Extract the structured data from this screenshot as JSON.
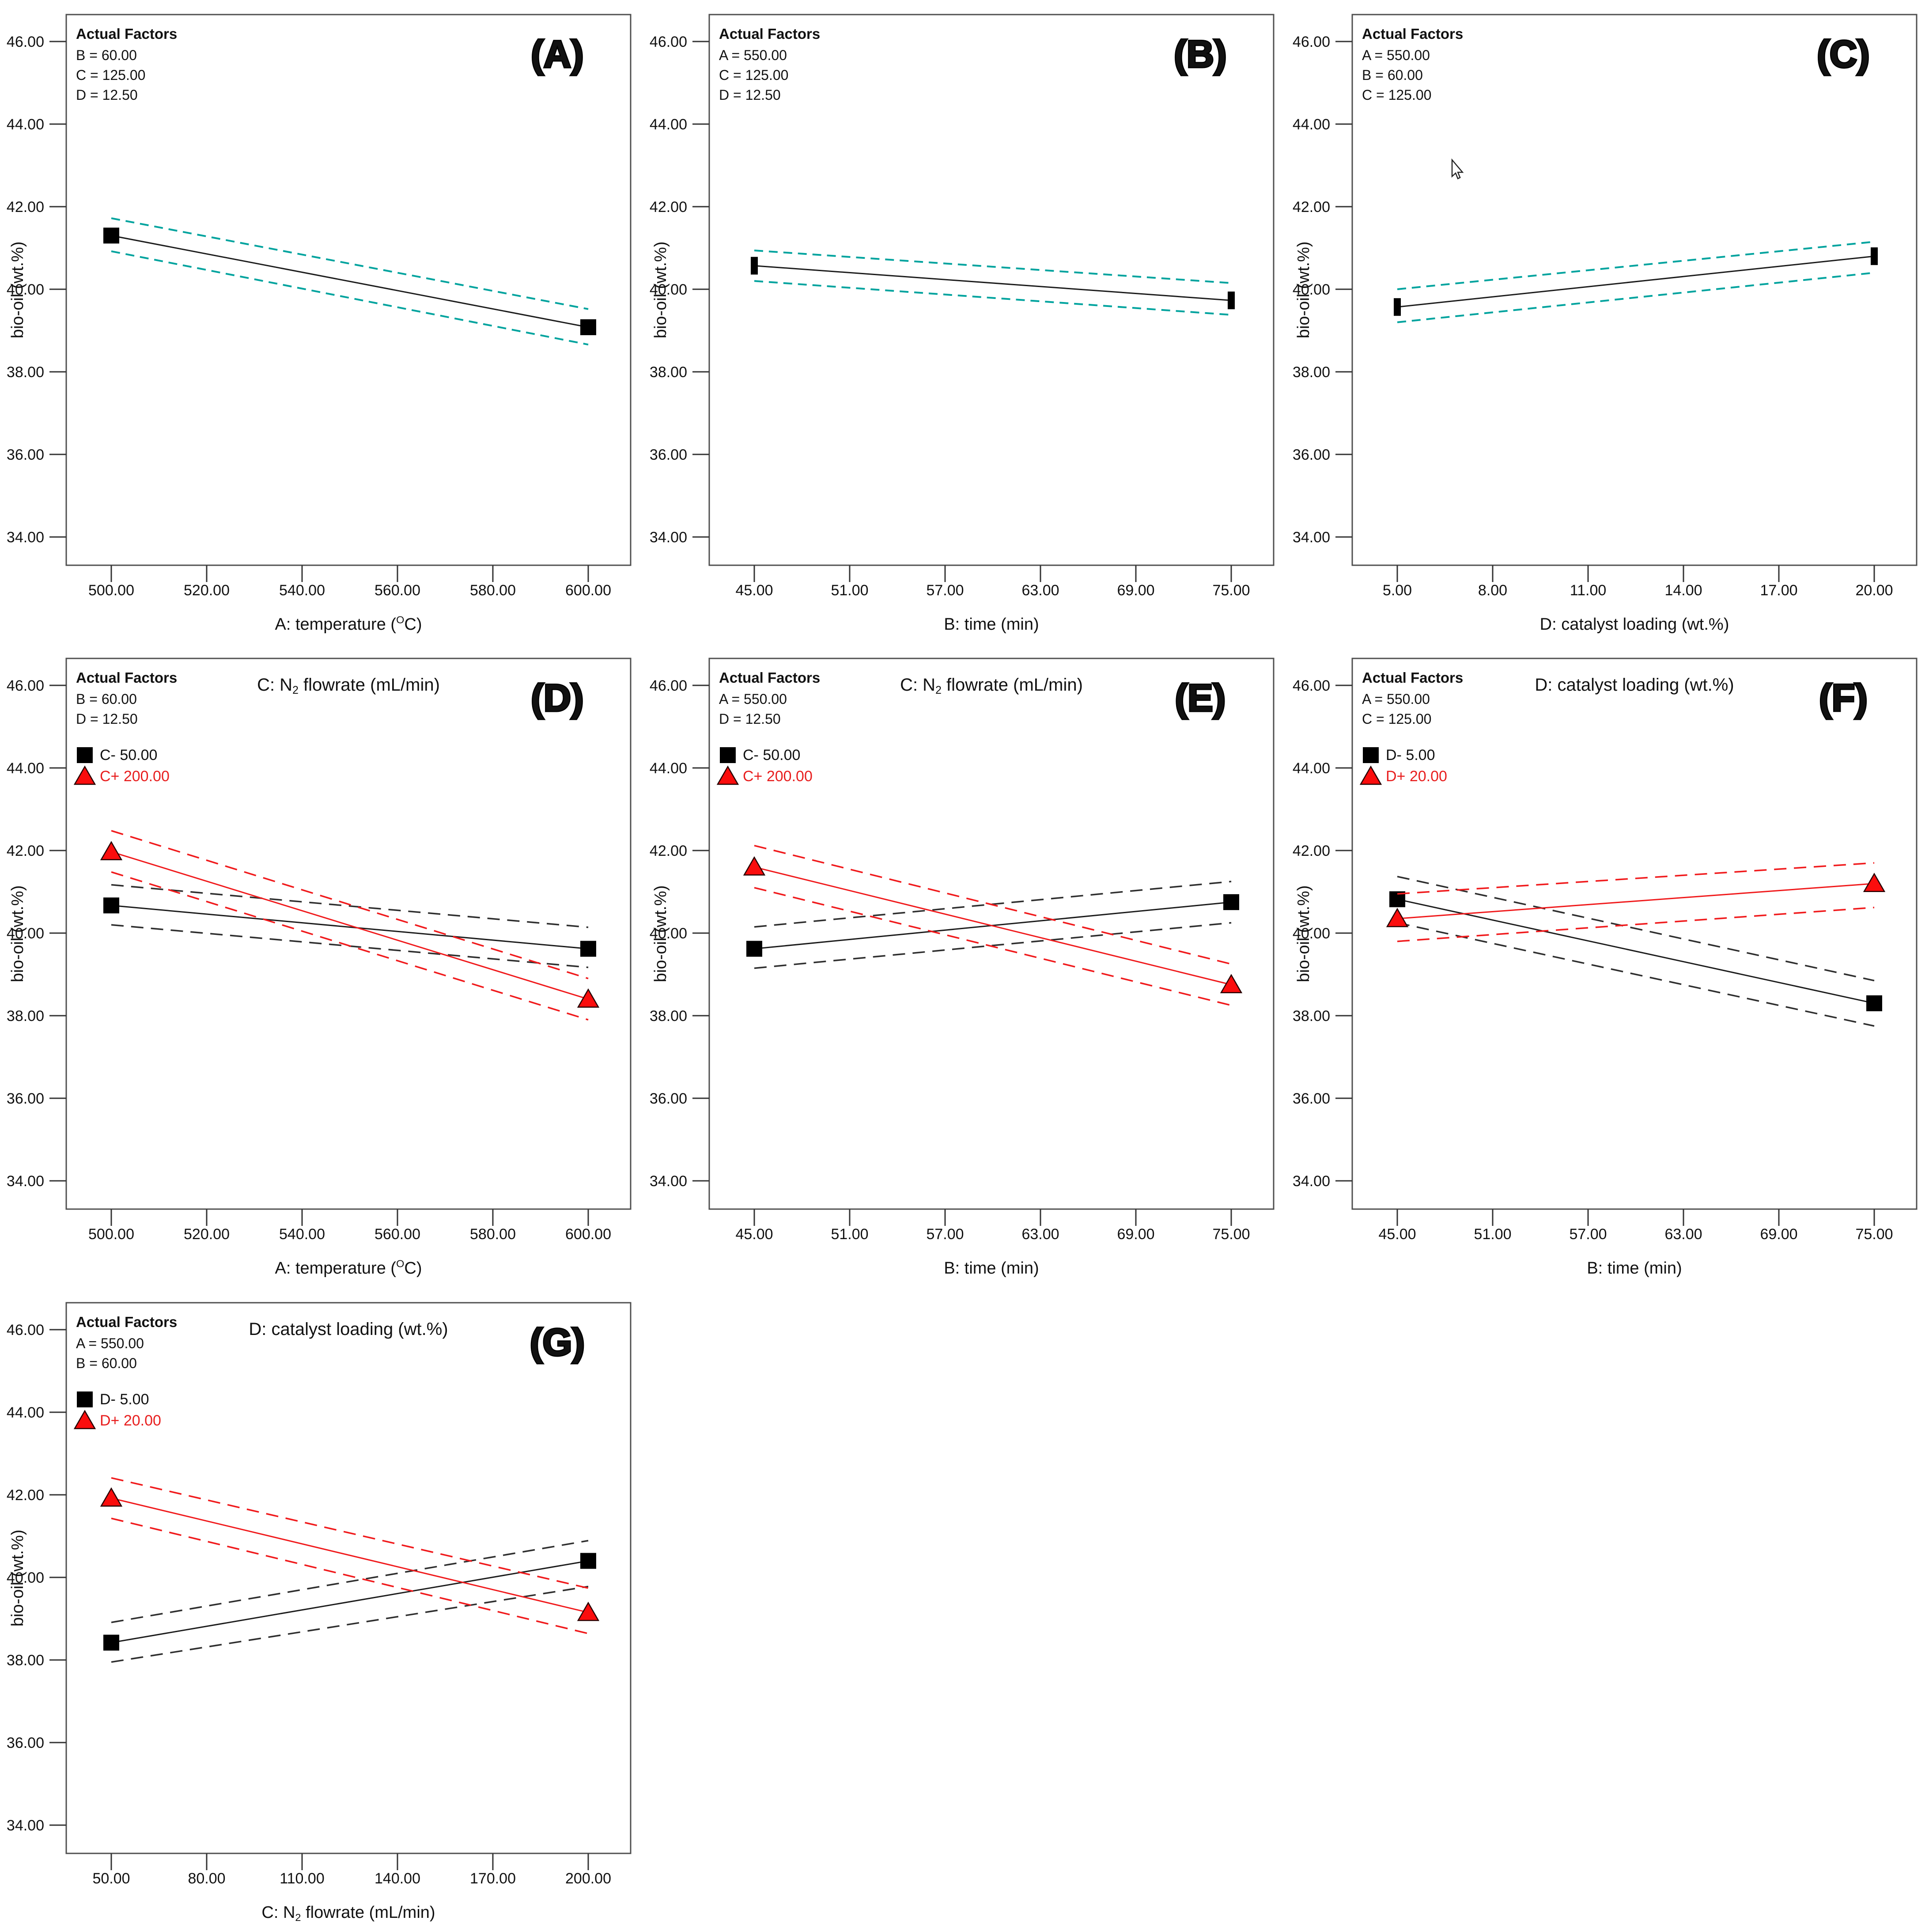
{
  "page": {
    "background": "#ffffff"
  },
  "colors": {
    "black_line": "#1c1c1c",
    "black_ci": "#2e2e2e",
    "teal_ci": "#00A39E",
    "red_line": "#f01a1c",
    "red_text": "#e81e1e",
    "marker_black": "#000000",
    "marker_red_fill": "#fb0d0d",
    "marker_red_stroke": "#250000",
    "box_border": "#4f4f4f",
    "tick_color": "#333333",
    "text": "#111111"
  },
  "y_axis": {
    "label": "bio-oil (wt.%)",
    "tick_labels": [
      "46.00",
      "44.00",
      "42.00",
      "40.00",
      "38.00",
      "36.00",
      "34.00"
    ],
    "tick_values": [
      46,
      44,
      42,
      40,
      38,
      36,
      34
    ],
    "ylim": [
      33.3,
      46.7
    ]
  },
  "chart_data": [
    {
      "id": "A",
      "panel_label": "(A)",
      "row": 0,
      "col": 0,
      "type": "line",
      "title": null,
      "xlabel": "A: temperature (^{O}C)",
      "x_tick_labels": [
        "500.00",
        "520.00",
        "540.00",
        "560.00",
        "580.00",
        "600.00"
      ],
      "x": [
        500,
        600
      ],
      "actual_factors": {
        "heading": "Actual Factors",
        "lines": [
          "B = 60.00",
          "C = 125.00",
          "D = 12.50"
        ]
      },
      "legend": null,
      "series": [
        {
          "name": "mean",
          "color": "black",
          "marker_shape": "square",
          "ci_color": "teal",
          "y": [
            41.3,
            39.08
          ],
          "ci_upper": [
            41.72,
            39.52
          ],
          "ci_lower": [
            40.92,
            38.66
          ]
        }
      ],
      "cursor": {
        "present": false
      }
    },
    {
      "id": "B",
      "panel_label": "(B)",
      "row": 0,
      "col": 1,
      "type": "line",
      "title": null,
      "xlabel": "B: time (min)",
      "x_tick_labels": [
        "45.00",
        "51.00",
        "57.00",
        "63.00",
        "69.00",
        "75.00"
      ],
      "x": [
        45,
        75
      ],
      "actual_factors": {
        "heading": "Actual Factors",
        "lines": [
          "A = 550.00",
          "C = 125.00",
          "D = 12.50"
        ]
      },
      "legend": null,
      "series": [
        {
          "name": "mean",
          "color": "black",
          "marker_shape": "bar",
          "ci_color": "teal",
          "y": [
            40.57,
            39.73
          ],
          "ci_upper": [
            40.94,
            40.15
          ],
          "ci_lower": [
            40.2,
            39.38
          ]
        }
      ],
      "cursor": {
        "present": false
      }
    },
    {
      "id": "C",
      "panel_label": "(C)",
      "row": 0,
      "col": 2,
      "type": "line",
      "title": null,
      "xlabel": "D: catalyst loading (wt.%)",
      "x_tick_labels": [
        "5.00",
        "8.00",
        "11.00",
        "14.00",
        "17.00",
        "20.00"
      ],
      "x": [
        5,
        20
      ],
      "actual_factors": {
        "heading": "Actual Factors",
        "lines": [
          "A = 550.00",
          "B = 60.00",
          "C = 125.00"
        ]
      },
      "legend": null,
      "series": [
        {
          "name": "mean",
          "color": "black",
          "marker_shape": "bar",
          "ci_color": "teal",
          "y": [
            39.57,
            40.8
          ],
          "ci_upper": [
            40.0,
            41.15
          ],
          "ci_lower": [
            39.2,
            40.4
          ]
        }
      ],
      "cursor": {
        "present": true
      }
    },
    {
      "id": "D",
      "panel_label": "(D)",
      "row": 1,
      "col": 0,
      "type": "line",
      "title": "C: N_{2} flowrate (mL/min)",
      "xlabel": "A: temperature (^{O}C)",
      "x_tick_labels": [
        "500.00",
        "520.00",
        "540.00",
        "560.00",
        "580.00",
        "600.00"
      ],
      "x": [
        500,
        600
      ],
      "actual_factors": {
        "heading": "Actual Factors",
        "lines": [
          "B = 60.00",
          "D = 12.50"
        ]
      },
      "legend": [
        {
          "marker": "square",
          "color": "black",
          "label": "C- 50.00"
        },
        {
          "marker": "triangle",
          "color": "red",
          "label": "C+ 200.00"
        }
      ],
      "series": [
        {
          "name": "C- 50.00",
          "color": "black",
          "marker_shape": "square",
          "ci_color": "black",
          "y": [
            40.67,
            39.62
          ],
          "ci_upper": [
            41.17,
            40.14
          ],
          "ci_lower": [
            40.2,
            39.17
          ]
        },
        {
          "name": "C+ 200.00",
          "color": "red",
          "marker_shape": "triangle",
          "ci_color": "red",
          "y": [
            41.97,
            38.4
          ],
          "ci_upper": [
            42.48,
            38.9
          ],
          "ci_lower": [
            41.48,
            37.9
          ]
        }
      ],
      "cursor": {
        "present": false
      }
    },
    {
      "id": "E",
      "panel_label": "(E)",
      "row": 1,
      "col": 1,
      "type": "line",
      "title": "C: N_{2} flowrate (mL/min)",
      "xlabel": "B: time (min)",
      "x_tick_labels": [
        "45.00",
        "51.00",
        "57.00",
        "63.00",
        "69.00",
        "75.00"
      ],
      "x": [
        45,
        75
      ],
      "actual_factors": {
        "heading": "Actual Factors",
        "lines": [
          "A = 550.00",
          "D = 12.50"
        ]
      },
      "legend": [
        {
          "marker": "square",
          "color": "black",
          "label": "C- 50.00"
        },
        {
          "marker": "triangle",
          "color": "red",
          "label": "C+ 200.00"
        }
      ],
      "series": [
        {
          "name": "C- 50.00",
          "color": "black",
          "marker_shape": "square",
          "ci_color": "black",
          "y": [
            39.62,
            40.75
          ],
          "ci_upper": [
            40.15,
            41.25
          ],
          "ci_lower": [
            39.15,
            40.25
          ]
        },
        {
          "name": "C+ 200.00",
          "color": "red",
          "marker_shape": "triangle",
          "ci_color": "red",
          "y": [
            41.6,
            38.75
          ],
          "ci_upper": [
            42.12,
            39.25
          ],
          "ci_lower": [
            41.1,
            38.25
          ]
        }
      ],
      "cursor": {
        "present": false
      }
    },
    {
      "id": "F",
      "panel_label": "(F)",
      "row": 1,
      "col": 2,
      "type": "line",
      "title": "D: catalyst loading (wt.%)",
      "xlabel": "B: time (min)",
      "x_tick_labels": [
        "45.00",
        "51.00",
        "57.00",
        "63.00",
        "69.00",
        "75.00"
      ],
      "x": [
        45,
        75
      ],
      "actual_factors": {
        "heading": "Actual Factors",
        "lines": [
          "A = 550.00",
          "C = 125.00"
        ]
      },
      "legend": [
        {
          "marker": "square",
          "color": "black",
          "label": "D- 5.00"
        },
        {
          "marker": "triangle",
          "color": "red",
          "label": "D+ 20.00"
        }
      ],
      "series": [
        {
          "name": "D- 5.00",
          "color": "black",
          "marker_shape": "square",
          "ci_color": "black",
          "y": [
            40.82,
            38.3
          ],
          "ci_upper": [
            41.37,
            38.85
          ],
          "ci_lower": [
            40.25,
            37.75
          ]
        },
        {
          "name": "D+ 20.00",
          "color": "red",
          "marker_shape": "triangle",
          "ci_color": "red",
          "y": [
            40.35,
            41.2
          ],
          "ci_upper": [
            40.95,
            41.7
          ],
          "ci_lower": [
            39.8,
            40.62
          ]
        }
      ],
      "cursor": {
        "present": false
      }
    },
    {
      "id": "G",
      "panel_label": "(G)",
      "row": 2,
      "col": 0,
      "type": "line",
      "title": "D: catalyst loading (wt.%)",
      "xlabel": "C: N_{2} flowrate (mL/min)",
      "x_tick_labels": [
        "50.00",
        "80.00",
        "110.00",
        "140.00",
        "170.00",
        "200.00"
      ],
      "x": [
        50,
        200
      ],
      "actual_factors": {
        "heading": "Actual Factors",
        "lines": [
          "A = 550.00",
          "B = 60.00"
        ]
      },
      "legend": [
        {
          "marker": "square",
          "color": "black",
          "label": "D- 5.00"
        },
        {
          "marker": "triangle",
          "color": "red",
          "label": "D+ 20.00"
        }
      ],
      "series": [
        {
          "name": "D- 5.00",
          "color": "black",
          "marker_shape": "square",
          "ci_color": "black",
          "y": [
            38.42,
            40.4
          ],
          "ci_upper": [
            38.91,
            40.89
          ],
          "ci_lower": [
            37.95,
            39.78
          ]
        },
        {
          "name": "D+ 20.00",
          "color": "red",
          "marker_shape": "triangle",
          "ci_color": "red",
          "y": [
            41.92,
            39.15
          ],
          "ci_upper": [
            42.41,
            39.74
          ],
          "ci_lower": [
            41.43,
            38.64
          ]
        }
      ],
      "cursor": {
        "present": false
      }
    }
  ]
}
